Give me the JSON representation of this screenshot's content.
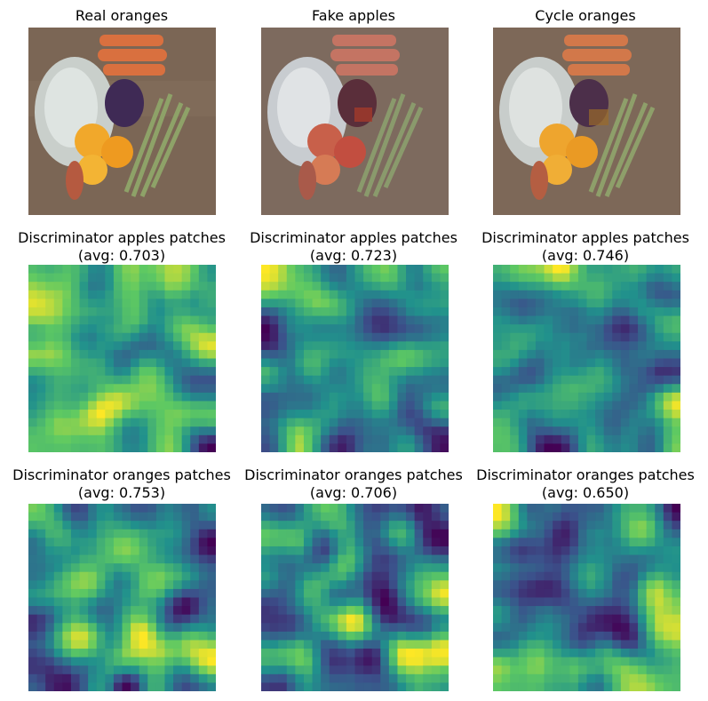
{
  "figure": {
    "rows": [
      {
        "panels": [
          {
            "title": "Real oranges",
            "kind": "photo",
            "variant": "real-oranges"
          },
          {
            "title": "Fake apples",
            "kind": "photo",
            "variant": "fake-apples"
          },
          {
            "title": "Cycle oranges",
            "kind": "photo",
            "variant": "cycle-oranges"
          }
        ]
      },
      {
        "panels": [
          {
            "title": "Discriminator apples patches",
            "subtitle": "(avg: 0.703)",
            "kind": "heatmap"
          },
          {
            "title": "Discriminator apples patches",
            "subtitle": "(avg: 0.723)",
            "kind": "heatmap"
          },
          {
            "title": "Discriminator apples patches",
            "subtitle": "(avg: 0.746)",
            "kind": "heatmap"
          }
        ]
      },
      {
        "panels": [
          {
            "title": "Discriminator oranges patches",
            "subtitle": "(avg: 0.753)",
            "kind": "heatmap"
          },
          {
            "title": "Discriminator oranges patches",
            "subtitle": "(avg: 0.706)",
            "kind": "heatmap"
          },
          {
            "title": "Discriminator oranges patches",
            "subtitle": "(avg: 0.650)",
            "kind": "heatmap"
          }
        ]
      }
    ],
    "colormap": [
      "#440154",
      "#3b528b",
      "#21918c",
      "#5ec962",
      "#fde725"
    ]
  }
}
